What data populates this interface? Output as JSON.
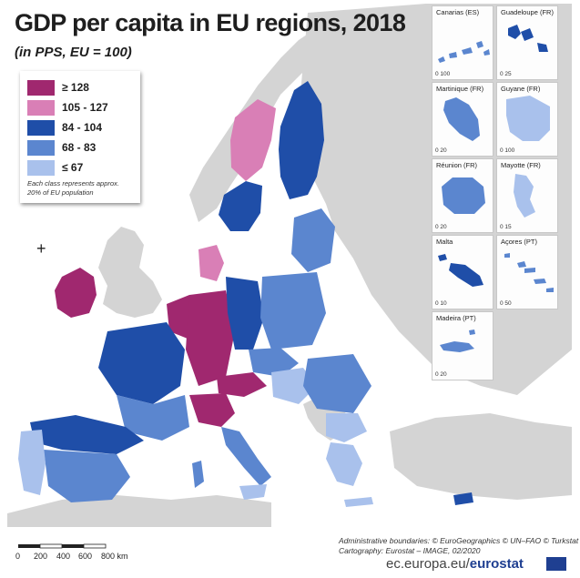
{
  "title": "GDP per capita in EU regions, 2018",
  "subtitle": "(in PPS, EU = 100)",
  "legend": {
    "classes": [
      {
        "label": "≥ 128",
        "color": "#a0286f"
      },
      {
        "label": "105 - 127",
        "color": "#d97fb6"
      },
      {
        "label": "84 - 104",
        "color": "#1f4ea8"
      },
      {
        "label": "68 - 83",
        "color": "#5b86cf"
      },
      {
        "label": "≤ 67",
        "color": "#a9c1ec"
      }
    ],
    "note": "Each class represents approx. 20% of EU population"
  },
  "insets": [
    {
      "title": "Canarias (ES)",
      "scale": "0  100"
    },
    {
      "title": "Guadeloupe (FR)",
      "scale": "0  25"
    },
    {
      "title": "Martinique (FR)",
      "scale": "0  20"
    },
    {
      "title": "Guyane (FR)",
      "scale": "0  100"
    },
    {
      "title": "Réunion (FR)",
      "scale": "0  20"
    },
    {
      "title": "Mayotte (FR)",
      "scale": "0  15"
    },
    {
      "title": "Malta",
      "scale": "0  10"
    },
    {
      "title": "Açores (PT)",
      "scale": "0  50"
    },
    {
      "title": "Madeira (PT)",
      "scale": "0  20"
    }
  ],
  "scale_bar": {
    "labels": [
      "0",
      "200",
      "400",
      "600",
      "800 km"
    ]
  },
  "credits": {
    "line1": "Administrative boundaries: © EuroGeographics © UN–FAO © Turkstat",
    "line2": "Cartography: Eurostat – IMAGE, 02/2020"
  },
  "footer": {
    "domain": "ec.europa.eu/",
    "brand": "eurostat"
  },
  "colors": {
    "sea": "#ffffff",
    "non_eu_land": "#d4d4d4",
    "border": "#ffffff"
  }
}
